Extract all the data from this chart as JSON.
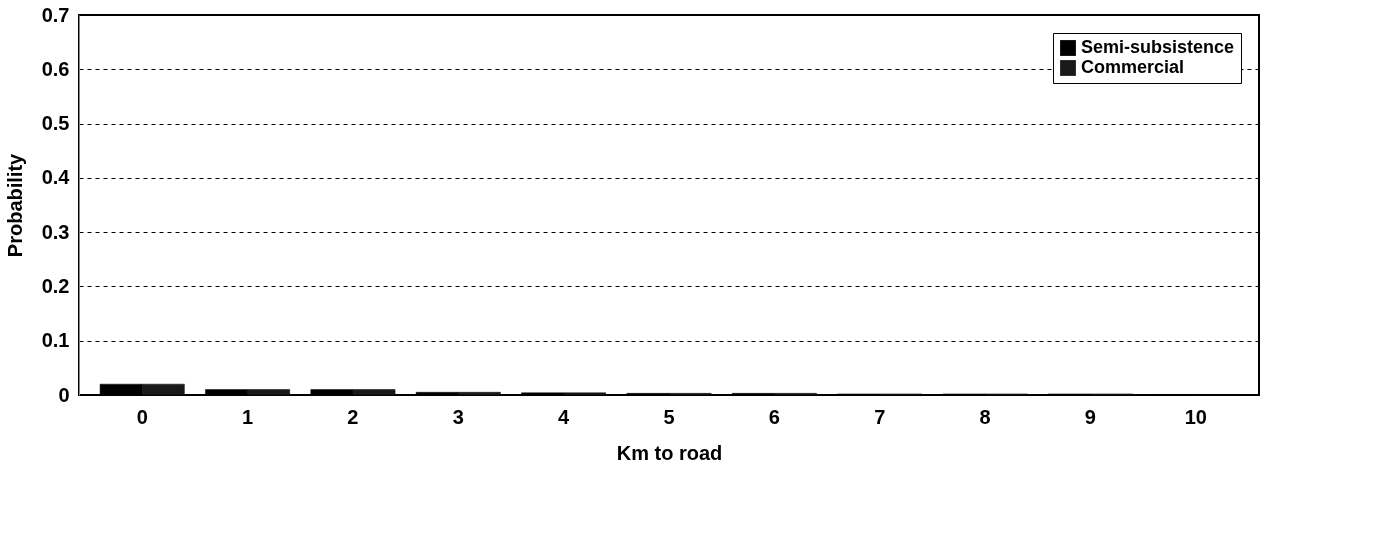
{
  "chart_data": {
    "type": "bar",
    "xlabel": "Km to road",
    "ylabel": "Probability",
    "categories": [
      "0",
      "1",
      "2",
      "3",
      "4",
      "5",
      "6",
      "7",
      "8",
      "9",
      "10"
    ],
    "series": [
      {
        "name": "Semi-subsistence",
        "color": "#000000",
        "values": [
          0.02,
          0.01,
          0.01,
          0.005,
          0.004,
          0.003,
          0.003,
          0.002,
          0.002,
          0.002,
          0.001
        ]
      },
      {
        "name": "Commercial",
        "color": "#1a1a1a",
        "values": [
          0.02,
          0.01,
          0.01,
          0.005,
          0.004,
          0.003,
          0.003,
          0.002,
          0.002,
          0.002,
          0.001
        ]
      }
    ],
    "ylim": [
      0,
      0.7
    ],
    "yticks": [
      0,
      0.1,
      0.2,
      0.3,
      0.4,
      0.5,
      0.6,
      0.7
    ],
    "grid": "y",
    "line_style": "dashed",
    "legend": "top right"
  }
}
